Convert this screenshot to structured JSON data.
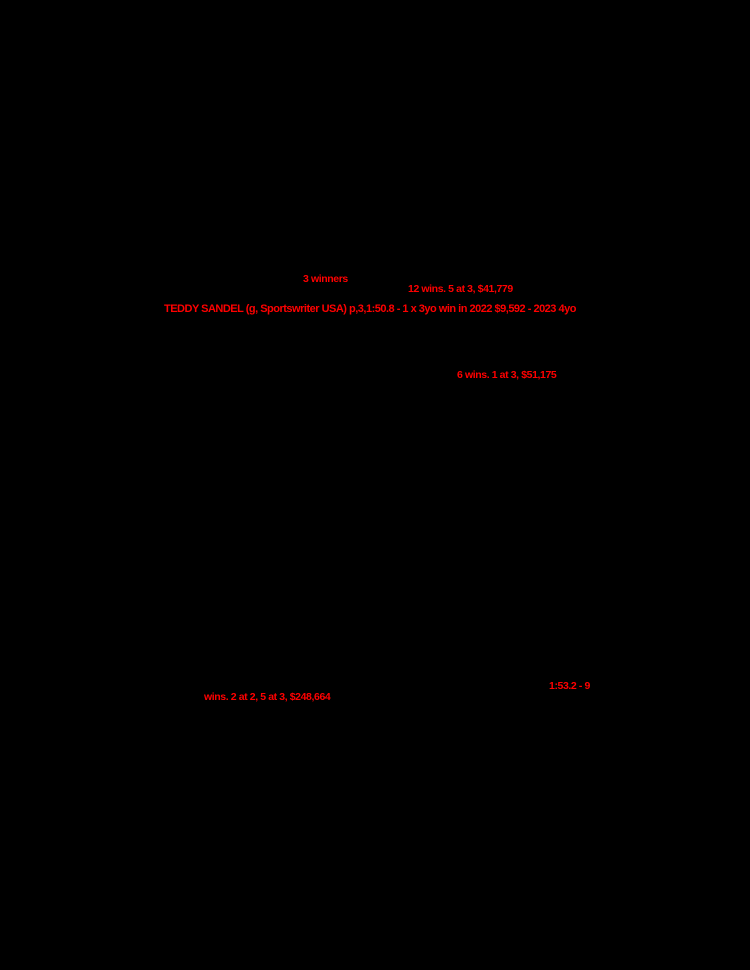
{
  "page": {
    "background_color": "#000000",
    "highlight_text_color": "#ff0000"
  },
  "fragments": {
    "winners_count": {
      "text": "3 winners"
    },
    "sire_record": {
      "text": "12 wins. 5 at 3, $41,779"
    },
    "headline_horse": {
      "text": "TEDDY SANDEL (g, Sportswriter USA) p,3,1:50.8 - 1 x 3yo win in 2022 $9,592 - 2023 4yo"
    },
    "dam_record": {
      "text": "6 wins. 1 at 3, $51,175"
    },
    "time_record": {
      "text": "1:53.2 - 9"
    },
    "race_record": {
      "text": "wins. 2 at 2, 5 at 3, $248,664"
    }
  }
}
